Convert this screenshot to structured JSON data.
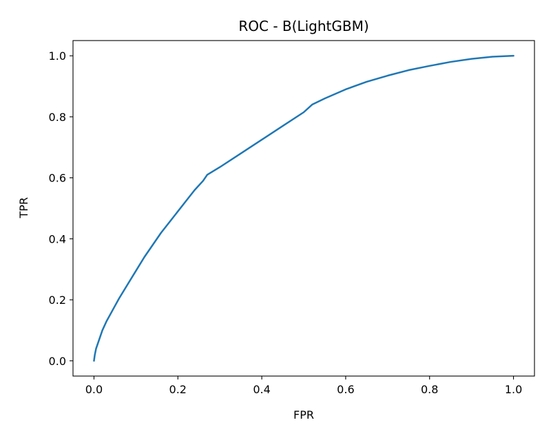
{
  "chart_data": {
    "type": "line",
    "title": "ROC - B(LightGBM)",
    "xlabel": "FPR",
    "ylabel": "TPR",
    "xlim": [
      -0.05,
      1.05
    ],
    "ylim": [
      -0.05,
      1.05
    ],
    "xticks": [
      0.0,
      0.2,
      0.4,
      0.6,
      0.8,
      1.0
    ],
    "yticks": [
      0.0,
      0.2,
      0.4,
      0.6,
      0.8,
      1.0
    ],
    "xtick_labels": [
      "0.0",
      "0.2",
      "0.4",
      "0.6",
      "0.8",
      "1.0"
    ],
    "ytick_labels": [
      "0.0",
      "0.2",
      "0.4",
      "0.6",
      "0.8",
      "1.0"
    ],
    "grid": false,
    "series": [
      {
        "color": "#1f77b4",
        "x": [
          0.0,
          0.002,
          0.005,
          0.01,
          0.015,
          0.02,
          0.03,
          0.04,
          0.05,
          0.06,
          0.08,
          0.1,
          0.12,
          0.14,
          0.16,
          0.18,
          0.2,
          0.22,
          0.24,
          0.26,
          0.27,
          0.3,
          0.35,
          0.4,
          0.45,
          0.5,
          0.52,
          0.55,
          0.6,
          0.65,
          0.7,
          0.75,
          0.8,
          0.85,
          0.9,
          0.95,
          1.0
        ],
        "y": [
          0.0,
          0.02,
          0.04,
          0.06,
          0.08,
          0.1,
          0.13,
          0.155,
          0.18,
          0.205,
          0.25,
          0.295,
          0.34,
          0.38,
          0.42,
          0.455,
          0.49,
          0.525,
          0.56,
          0.59,
          0.61,
          0.635,
          0.68,
          0.725,
          0.77,
          0.815,
          0.84,
          0.86,
          0.89,
          0.915,
          0.935,
          0.953,
          0.967,
          0.98,
          0.99,
          0.997,
          1.0
        ]
      }
    ]
  }
}
